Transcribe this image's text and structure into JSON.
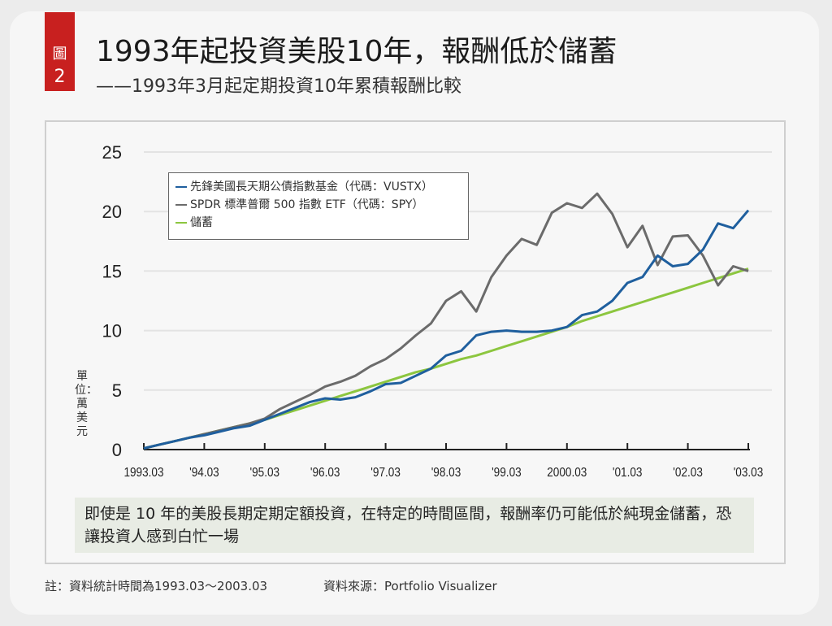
{
  "badge": {
    "char": "圖",
    "number": "2",
    "color": "#c8201f"
  },
  "title": "1993年起投資美股10年，報酬低於儲蓄",
  "subtitle": "——1993年3月起定期投資10年累積報酬比較",
  "note": "即使是 10 年的美股長期定期定額投資，在特定的時間區間，報酬率仍可能低於純現金儲蓄，恐讓投資人感到白忙一場",
  "footer": {
    "left": "註：資料統計時間為1993.03～2003.03",
    "right": "資料來源：Portfolio Visualizer"
  },
  "chart_data": {
    "type": "line",
    "title": "",
    "xlabel": "",
    "ylabel": "單位：萬美元",
    "ylim": [
      0,
      25
    ],
    "yticks": [
      "0",
      "5",
      "10",
      "15",
      "20",
      "25"
    ],
    "xticks": [
      "1993.03",
      "'94.03",
      "'95.03",
      "'96.03",
      "'97.03",
      "'98.03",
      "'99.03",
      "2000.03",
      "'01.03",
      "'02.03",
      "'03.03"
    ],
    "x_range": [
      "1993.03",
      "2003.03"
    ],
    "x_frequency": "quarterly",
    "grid": true,
    "legend_position": "top-left",
    "series": [
      {
        "name": "先鋒美國長天期公債指數基金（代碼：VUSTX）",
        "color": "#1f5f9e",
        "values": [
          0.1,
          0.4,
          0.7,
          1.0,
          1.2,
          1.5,
          1.8,
          2.0,
          2.5,
          3.0,
          3.5,
          4.0,
          4.3,
          4.2,
          4.4,
          4.9,
          5.5,
          5.6,
          6.2,
          6.8,
          7.9,
          8.3,
          9.6,
          9.9,
          10.0,
          9.9,
          9.9,
          10.0,
          10.3,
          11.3,
          11.6,
          12.5,
          14.0,
          14.5,
          16.3,
          15.4,
          15.6,
          16.8,
          19.0,
          18.6,
          20.1
        ]
      },
      {
        "name": "SPDR 標準普爾 500 指數 ETF（代碼：SPY）",
        "color": "#6b6b6b",
        "values": [
          0.1,
          0.4,
          0.7,
          1.0,
          1.3,
          1.6,
          1.9,
          2.2,
          2.6,
          3.4,
          4.0,
          4.6,
          5.3,
          5.7,
          6.2,
          7.0,
          7.6,
          8.5,
          9.6,
          10.6,
          12.5,
          13.3,
          11.6,
          14.5,
          16.3,
          17.7,
          17.2,
          19.9,
          20.7,
          20.3,
          21.5,
          19.8,
          17.0,
          18.8,
          15.5,
          17.9,
          18.0,
          16.3,
          13.8,
          15.4,
          15.0
        ]
      },
      {
        "name": "儲蓄",
        "color": "#8cc63f",
        "values": [
          0.1,
          0.4,
          0.7,
          1.0,
          1.3,
          1.6,
          1.9,
          2.2,
          2.5,
          2.9,
          3.3,
          3.7,
          4.1,
          4.5,
          4.9,
          5.3,
          5.7,
          6.1,
          6.5,
          6.8,
          7.2,
          7.6,
          7.9,
          8.3,
          8.7,
          9.1,
          9.5,
          9.9,
          10.3,
          10.8,
          11.2,
          11.6,
          12.0,
          12.4,
          12.8,
          13.2,
          13.6,
          14.0,
          14.4,
          14.8,
          15.2
        ]
      }
    ]
  }
}
